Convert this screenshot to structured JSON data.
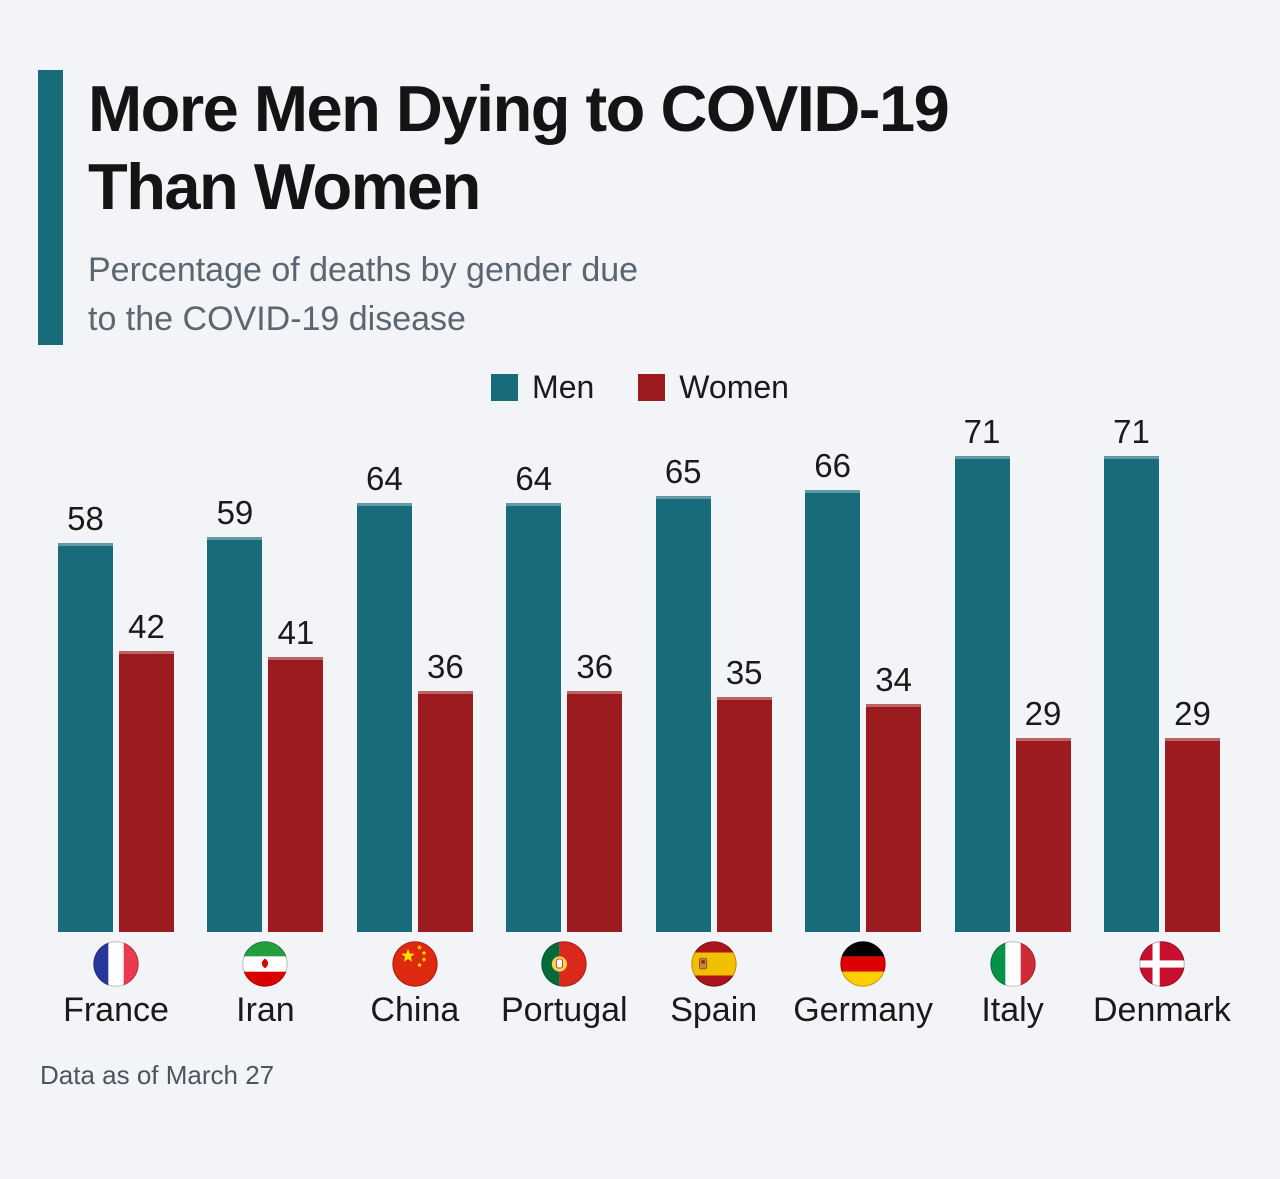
{
  "header": {
    "accent_color": "#186B7A",
    "title_line1": "More Men Dying to COVID-19",
    "title_line2": "Than Women",
    "subtitle_line1": "Percentage of deaths by gender due",
    "subtitle_line2": "to the COVID-19 disease"
  },
  "legend": {
    "men_label": "Men",
    "women_label": "Women"
  },
  "chart_data": {
    "type": "bar",
    "title": "More Men Dying to COVID-19 Than Women",
    "subtitle": "Percentage of deaths by gender due to the COVID-19 disease",
    "unit": "percent",
    "categories": [
      "France",
      "Iran",
      "China",
      "Portugal",
      "Spain",
      "Germany",
      "Italy",
      "Denmark"
    ],
    "series": [
      {
        "name": "Men",
        "color": "#186B7A",
        "values": [
          58,
          59,
          64,
          64,
          65,
          66,
          71,
          71
        ]
      },
      {
        "name": "Women",
        "color": "#9B1B1E",
        "values": [
          42,
          41,
          36,
          36,
          35,
          34,
          29,
          29
        ]
      }
    ],
    "ylim": [
      0,
      75
    ],
    "grid": false,
    "value_labels": true,
    "legend_position": "top",
    "flag_icons": [
      "france-flag-icon",
      "iran-flag-icon",
      "china-flag-icon",
      "portugal-flag-icon",
      "spain-flag-icon",
      "germany-flag-icon",
      "italy-flag-icon",
      "denmark-flag-icon"
    ]
  },
  "footer": {
    "note": "Data as of March 27"
  }
}
